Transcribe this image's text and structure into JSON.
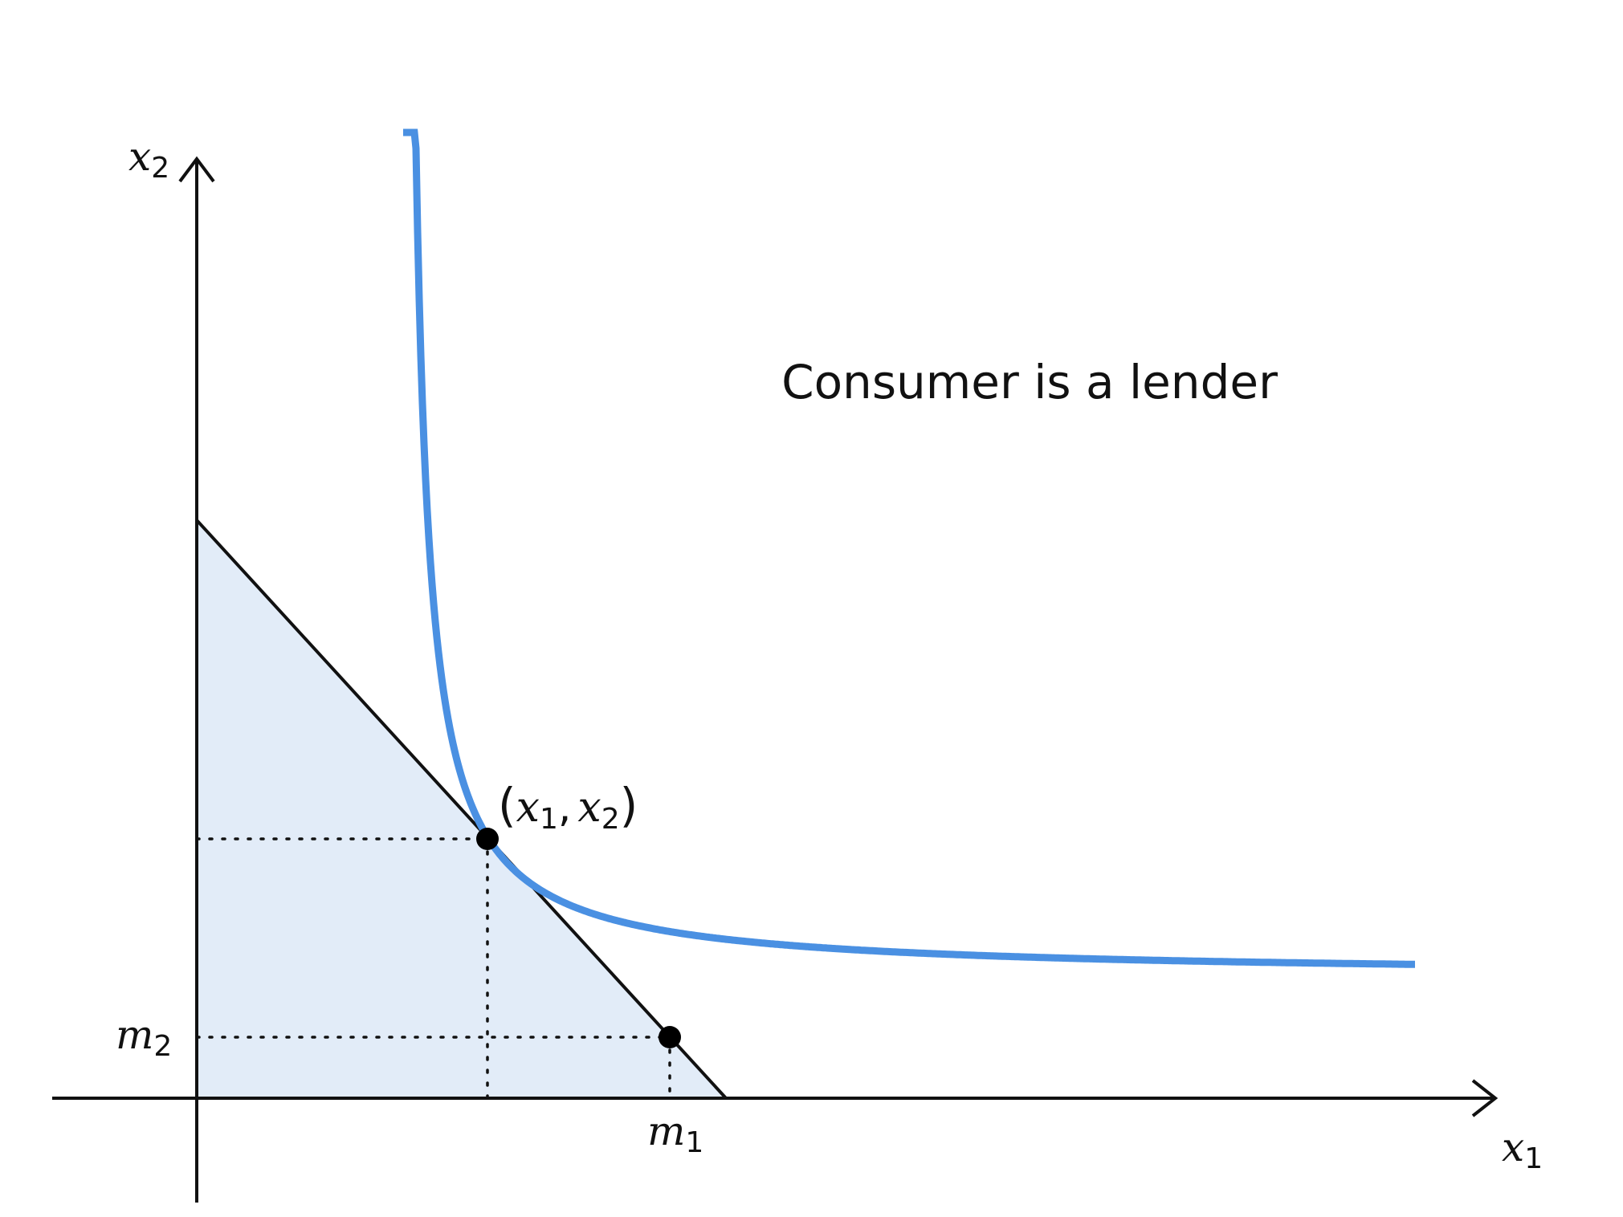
{
  "title": "Consumer is a lender",
  "axes": {
    "x_label": {
      "base": "x",
      "sub": "1"
    },
    "y_label": {
      "base": "x",
      "sub": "2"
    }
  },
  "tick_labels": {
    "m1": {
      "base": "m",
      "sub": "1"
    },
    "m2": {
      "base": "m",
      "sub": "2"
    }
  },
  "optimum_label": {
    "open": "(",
    "a": "x",
    "a_sub": "1",
    "comma": ",",
    "b": "x",
    "b_sub": "2",
    "close": ")"
  },
  "colors": {
    "indifference_curve": "#4a90e2",
    "budget_region": "#e2ecf8",
    "ink": "#111111"
  }
}
